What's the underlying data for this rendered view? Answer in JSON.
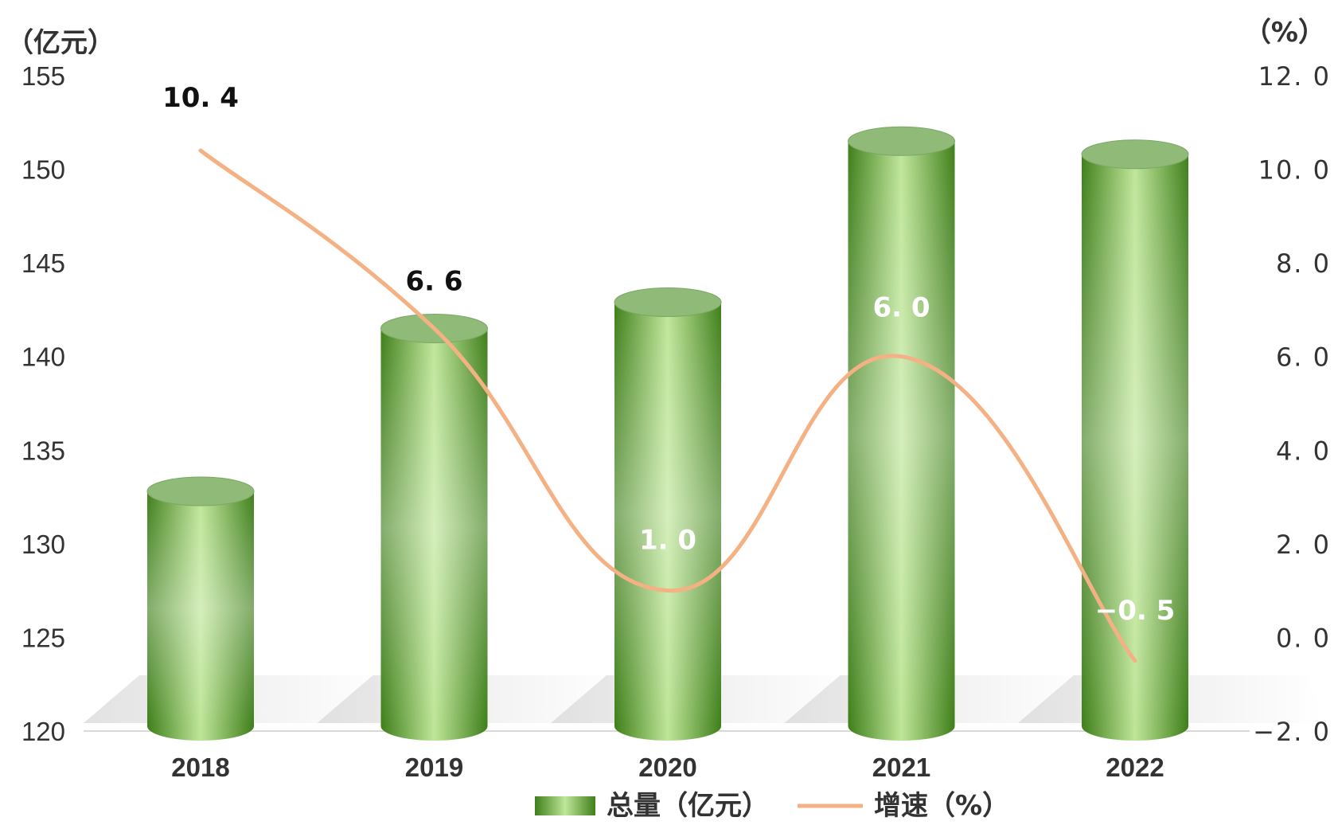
{
  "chart_data": {
    "type": "bar",
    "categories": [
      "2018",
      "2019",
      "2020",
      "2021",
      "2022"
    ],
    "series": [
      {
        "name": "总量（亿元）",
        "type": "bar",
        "axis": "left",
        "values": [
          132.8,
          141.5,
          142.9,
          151.5,
          150.8
        ]
      },
      {
        "name": "增速（%）",
        "type": "line",
        "axis": "right",
        "values": [
          10.4,
          6.6,
          1.0,
          6.0,
          -0.5
        ]
      }
    ],
    "data_labels": [
      "10. 4",
      "6. 6",
      "1. 0",
      "6. 0",
      "−0. 5"
    ],
    "left_axis": {
      "unit": "（亿元）",
      "ylim": [
        120,
        155
      ],
      "ticks": [
        "120",
        "125",
        "130",
        "135",
        "140",
        "145",
        "150",
        "155"
      ]
    },
    "right_axis": {
      "unit": "（%）",
      "ylim": [
        -2.0,
        12.0
      ],
      "ticks": [
        "−2. 0",
        "0. 0",
        "2. 0",
        "4. 0",
        "6. 0",
        "8. 0",
        "10. 0",
        "12. 0"
      ]
    },
    "grid": false,
    "legend_position": "bottom-center",
    "colors": {
      "bar": "#5a9a2a",
      "bar_light": "#d6f0b0",
      "bar_top": "#8fba78",
      "line": "#f4b183"
    }
  }
}
